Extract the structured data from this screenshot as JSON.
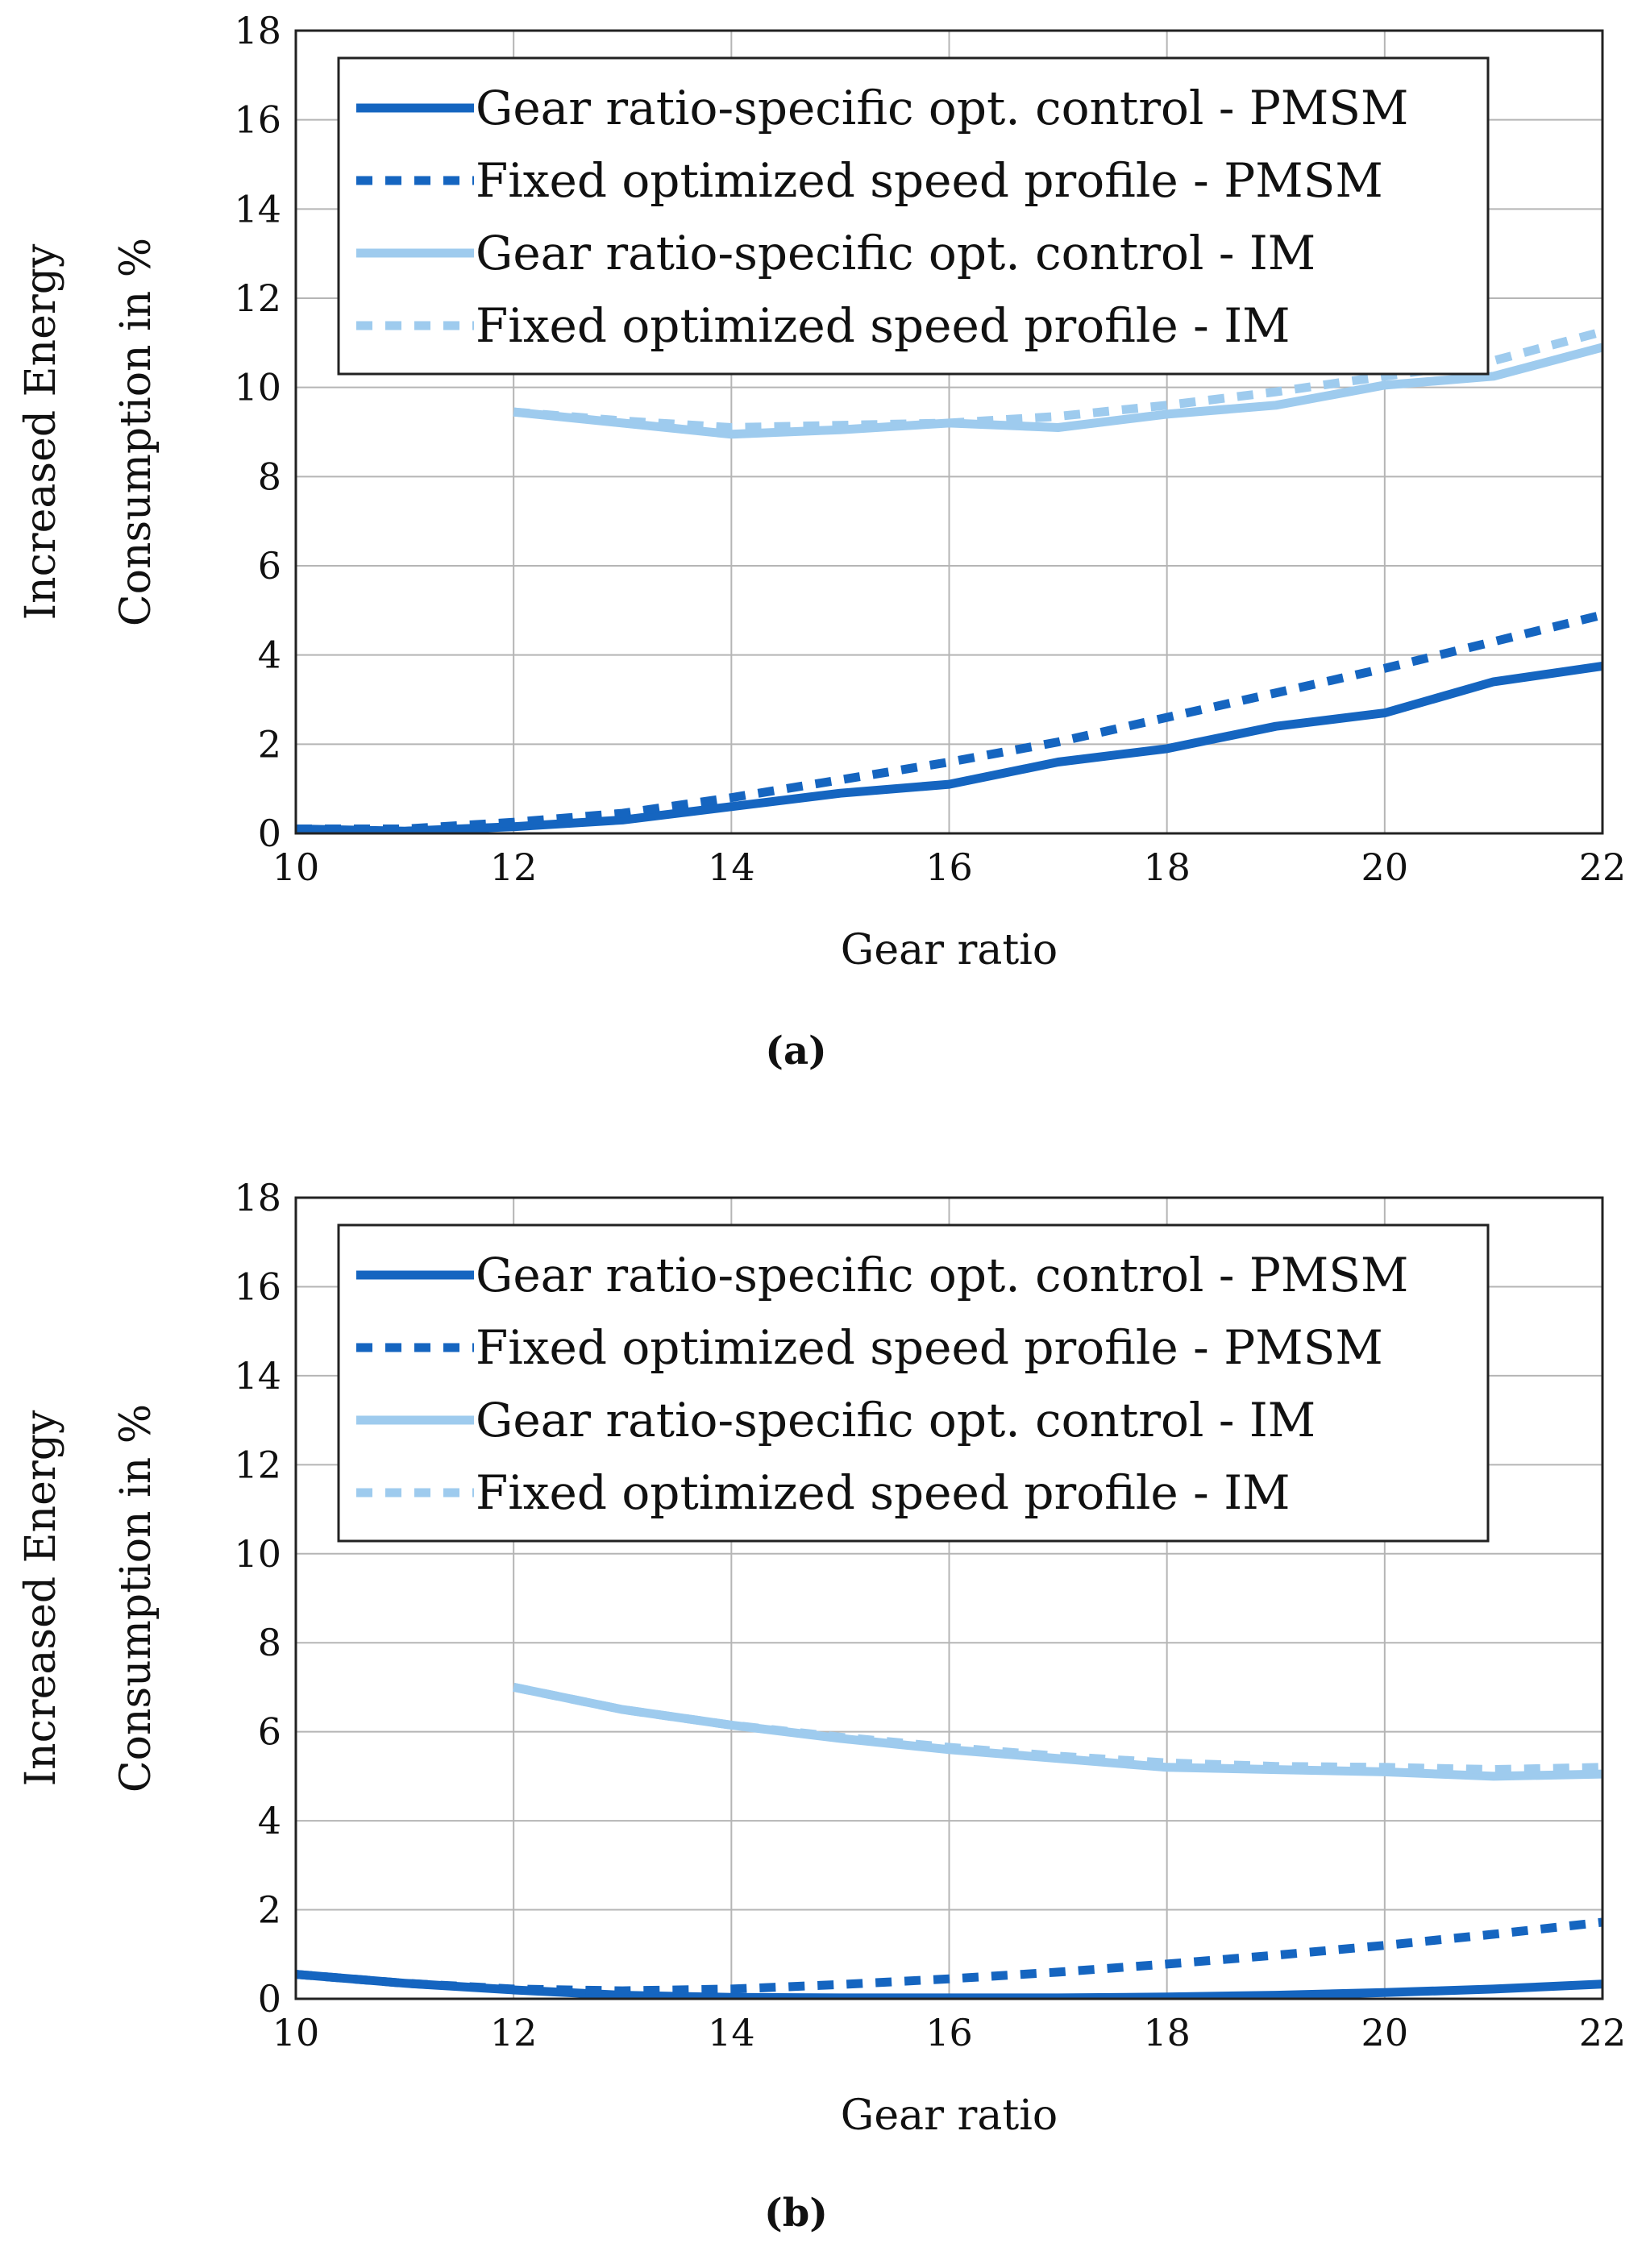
{
  "chart_data": [
    {
      "type": "line",
      "panel": "a",
      "caption": "(a)",
      "xlabel": "Gear ratio",
      "ylabel_line1": "Increased Energy",
      "ylabel_line2": "Consumption in %",
      "xlim": [
        10,
        22
      ],
      "ylim": [
        0,
        18
      ],
      "xticks": [
        10,
        12,
        14,
        16,
        18,
        20,
        22
      ],
      "yticks": [
        0,
        2,
        4,
        6,
        8,
        10,
        12,
        14,
        16,
        18
      ],
      "grid": true,
      "legend_position": "top",
      "series": [
        {
          "name": "Gear ratio-specific opt. control - PMSM",
          "color": "#1565c0",
          "dash": "solid",
          "x": [
            10,
            11,
            12,
            13,
            14,
            15,
            16,
            17,
            18,
            19,
            20,
            21,
            22
          ],
          "y": [
            0.1,
            0.05,
            0.15,
            0.3,
            0.6,
            0.9,
            1.1,
            1.6,
            1.9,
            2.4,
            2.7,
            3.4,
            3.75
          ]
        },
        {
          "name": "Fixed optimized speed profile - PMSM",
          "color": "#1565c0",
          "dash": "dashed",
          "x": [
            10,
            11,
            12,
            13,
            14,
            15,
            16,
            17,
            18,
            19,
            20,
            21,
            22
          ],
          "y": [
            0.1,
            0.1,
            0.25,
            0.45,
            0.8,
            1.2,
            1.6,
            2.05,
            2.6,
            3.15,
            3.7,
            4.3,
            4.9
          ]
        },
        {
          "name": "Gear ratio-specific opt. control - IM",
          "color": "#9ecbee",
          "dash": "solid",
          "x": [
            12,
            13,
            14,
            15,
            16,
            17,
            18,
            19,
            20,
            21,
            22
          ],
          "y": [
            9.45,
            9.2,
            8.95,
            9.05,
            9.2,
            9.1,
            9.4,
            9.6,
            10.05,
            10.25,
            10.9
          ]
        },
        {
          "name": "Fixed optimized speed profile - IM",
          "color": "#9ecbee",
          "dash": "dashed",
          "x": [
            12,
            13,
            14,
            15,
            16,
            17,
            18,
            19,
            20,
            21,
            22
          ],
          "y": [
            9.45,
            9.25,
            9.1,
            9.15,
            9.2,
            9.35,
            9.6,
            9.9,
            10.25,
            10.6,
            11.25
          ]
        }
      ]
    },
    {
      "type": "line",
      "panel": "b",
      "caption": "(b)",
      "xlabel": "Gear ratio",
      "ylabel_line1": "Increased Energy",
      "ylabel_line2": "Consumption in %",
      "xlim": [
        10,
        22
      ],
      "ylim": [
        0,
        18
      ],
      "xticks": [
        10,
        12,
        14,
        16,
        18,
        20,
        22
      ],
      "yticks": [
        0,
        2,
        4,
        6,
        8,
        10,
        12,
        14,
        16,
        18
      ],
      "grid": true,
      "legend_position": "top",
      "series": [
        {
          "name": "Gear ratio-specific opt. control - PMSM",
          "color": "#1565c0",
          "dash": "solid",
          "x": [
            10,
            11,
            12,
            13,
            14,
            15,
            16,
            17,
            18,
            19,
            20,
            21,
            22
          ],
          "y": [
            0.55,
            0.35,
            0.2,
            0.08,
            0.03,
            0.02,
            0.02,
            0.02,
            0.04,
            0.08,
            0.14,
            0.22,
            0.33
          ]
        },
        {
          "name": "Fixed optimized speed profile - PMSM",
          "color": "#1565c0",
          "dash": "dashed",
          "x": [
            10,
            11,
            12,
            13,
            14,
            15,
            16,
            17,
            18,
            19,
            20,
            21,
            22
          ],
          "y": [
            0.55,
            0.35,
            0.22,
            0.18,
            0.22,
            0.32,
            0.45,
            0.6,
            0.78,
            0.98,
            1.2,
            1.45,
            1.72
          ]
        },
        {
          "name": "Gear ratio-specific opt. control - IM",
          "color": "#9ecbee",
          "dash": "solid",
          "x": [
            12,
            13,
            14,
            15,
            16,
            17,
            18,
            19,
            20,
            21,
            22
          ],
          "y": [
            7.0,
            6.5,
            6.15,
            5.85,
            5.6,
            5.4,
            5.2,
            5.15,
            5.1,
            5.0,
            5.05
          ]
        },
        {
          "name": "Fixed optimized speed profile - IM",
          "color": "#9ecbee",
          "dash": "dashed",
          "x": [
            12,
            13,
            14,
            15,
            16,
            17,
            18,
            19,
            20,
            21,
            22
          ],
          "y": [
            7.0,
            6.5,
            6.15,
            5.88,
            5.65,
            5.45,
            5.3,
            5.22,
            5.2,
            5.15,
            5.2
          ]
        }
      ]
    }
  ]
}
